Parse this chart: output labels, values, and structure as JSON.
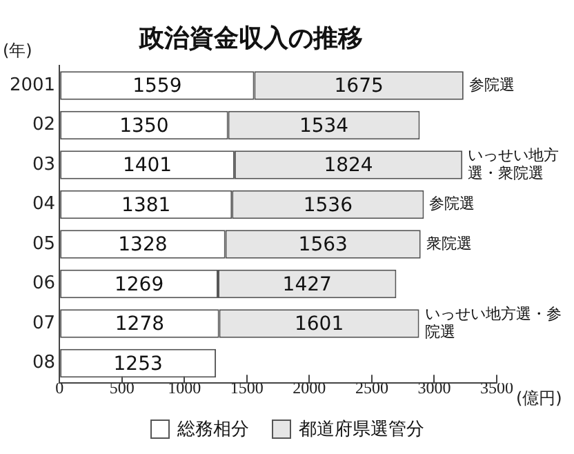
{
  "chart_data": {
    "type": "bar",
    "orientation": "horizontal",
    "stacked": true,
    "title": "政治資金収入の推移",
    "ylabel": "(年)",
    "xlabel": "(億円)",
    "categories": [
      "2001",
      "02",
      "03",
      "04",
      "05",
      "06",
      "07",
      "08"
    ],
    "series": [
      {
        "name": "総務相分",
        "color": "#ffffff",
        "values": [
          1559,
          1350,
          1401,
          1381,
          1328,
          1269,
          1278,
          1253
        ]
      },
      {
        "name": "都道府県選管分",
        "color": "#e6e6e6",
        "values": [
          1675,
          1534,
          1824,
          1536,
          1563,
          1427,
          1601,
          null
        ]
      }
    ],
    "xlim": [
      0,
      3500
    ],
    "xticks": [
      0,
      500,
      1000,
      1500,
      2000,
      2500,
      3000,
      3500
    ],
    "grid": false,
    "legend": "bottom",
    "data_labels": true,
    "annotations": [
      {
        "text": "参院選",
        "x": 3234,
        "y": "2001"
      },
      {
        "text": "いっせい地方選・衆院選",
        "x": 3225,
        "y": "03"
      },
      {
        "text": "参院選",
        "x": 2917,
        "y": "04"
      },
      {
        "text": "衆院選",
        "x": 2891,
        "y": "05"
      },
      {
        "text": "いっせい地方選・参院選",
        "x": 2879,
        "y": "07"
      }
    ]
  }
}
